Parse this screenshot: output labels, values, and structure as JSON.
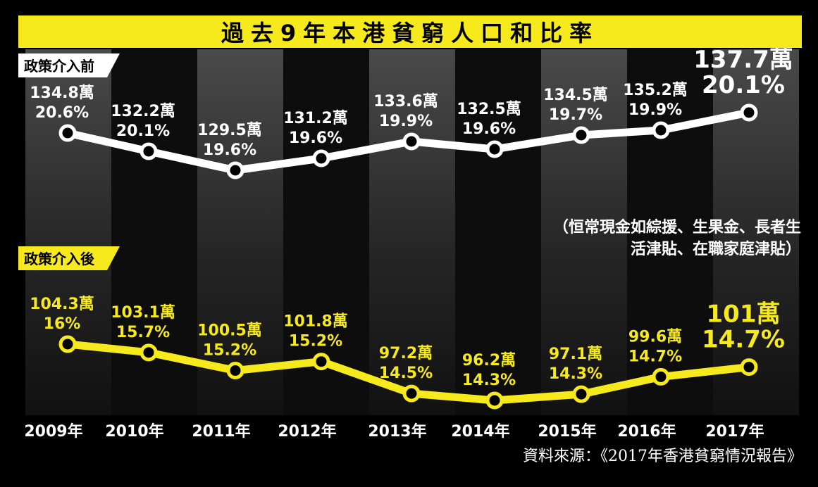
{
  "title": "過去9年本港貧窮人口和比率",
  "source": "資料來源：《2017年香港貧窮情況報告》",
  "note": "（恒常現金如綜援、生果金、長者生活津貼、在職家庭津貼）",
  "colors": {
    "background": "#000000",
    "column_dark": "#111111",
    "column_light": "#303030",
    "title_bar": "#f7ea1c",
    "before_series": "#ffffff",
    "after_series": "#f7ea1c",
    "before_label_text": "#ffffff",
    "after_label_text": "#f7ea1c"
  },
  "chart_data": {
    "type": "line",
    "title": "過去9年本港貧窮人口和比率",
    "x": [
      "2009年",
      "2010年",
      "2011年",
      "2012年",
      "2013年",
      "2014年",
      "2015年",
      "2016年",
      "2017年"
    ],
    "series": [
      {
        "name": "政策介入前",
        "population_wan": [
          134.8,
          132.2,
          129.5,
          131.2,
          133.6,
          132.5,
          134.5,
          135.2,
          137.7
        ],
        "population_labels": [
          "134.8萬",
          "132.2萬",
          "129.5萬",
          "131.2萬",
          "133.6萬",
          "132.5萬",
          "134.5萬",
          "135.2萬",
          "137.7萬"
        ],
        "rate_pct": [
          20.6,
          20.1,
          19.6,
          19.6,
          19.9,
          19.6,
          19.7,
          19.9,
          20.1
        ],
        "rate_labels": [
          "20.6%",
          "20.1%",
          "19.6%",
          "19.6%",
          "19.9%",
          "19.6%",
          "19.7%",
          "19.9%",
          "20.1%"
        ]
      },
      {
        "name": "政策介入後",
        "population_wan": [
          104.3,
          103.1,
          100.5,
          101.8,
          97.2,
          96.2,
          97.1,
          99.6,
          101
        ],
        "population_labels": [
          "104.3萬",
          "103.1萬",
          "100.5萬",
          "101.8萬",
          "97.2萬",
          "96.2萬",
          "97.1萬",
          "99.6萬",
          "101萬"
        ],
        "rate_pct": [
          16,
          15.7,
          15.2,
          15.2,
          14.5,
          14.3,
          14.3,
          14.7,
          14.7
        ],
        "rate_labels": [
          "16%",
          "15.7%",
          "15.2%",
          "15.2%",
          "14.5%",
          "14.3%",
          "14.3%",
          "14.7%",
          "14.7%"
        ]
      }
    ]
  }
}
